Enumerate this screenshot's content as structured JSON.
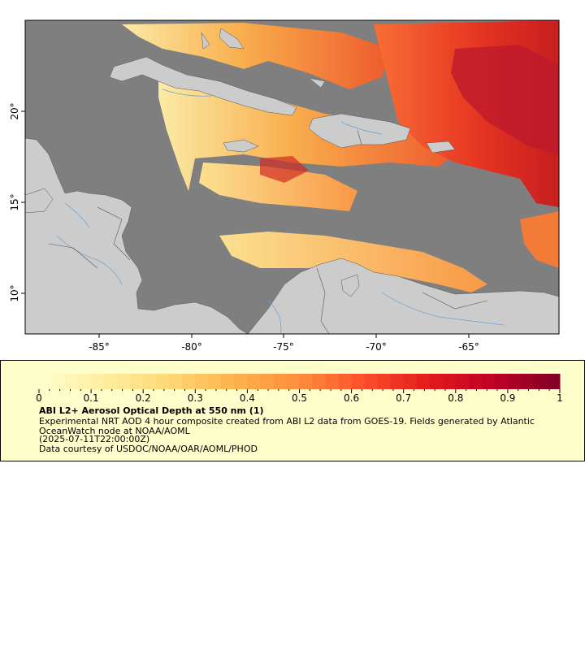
{
  "map": {
    "lon_ticks": [
      "-85°",
      "-80°",
      "-75°",
      "-70°",
      "-65°"
    ],
    "lat_ticks": [
      "20°",
      "15°",
      "10°"
    ],
    "colors": {
      "ocean": "#7f7f7f",
      "land": "#cccccc",
      "rivers": "#6a9ed6",
      "borders": "#555555",
      "frame": "#000000"
    }
  },
  "legend": {
    "tick_labels": [
      "0",
      "0.1",
      "0.2",
      "0.3",
      "0.4",
      "0.5",
      "0.6",
      "0.7",
      "0.8",
      "0.9",
      "1"
    ],
    "range": [
      0,
      1
    ],
    "title": "ABI L2+ Aerosol Optical Depth at 550 nm (1)",
    "description": "Experimental NRT AOD 4 hour composite created from ABI L2 data from GOES-19. Fields generated by Atlantic OceanWatch node at NOAA/AOML",
    "datetime": "(2025-07-11T22:00:00Z)",
    "credit": "Data courtesy of USDOC/NOAA/OAR/AOML/PHOD",
    "colormap": [
      "#ffffcc",
      "#ffeda0",
      "#fed976",
      "#feb24c",
      "#fd8d3c",
      "#fc4e2a",
      "#e31a1c",
      "#bd0026",
      "#800026"
    ],
    "background": "#ffffcc"
  }
}
